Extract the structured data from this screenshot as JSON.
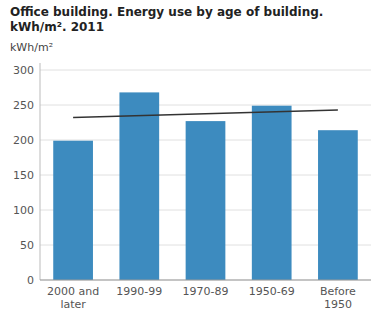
{
  "chart_data": {
    "type": "bar",
    "title": "Office building. Energy use by age of building. kWh/m². 2011",
    "annotation": "kWh/m²",
    "categories": [
      "2000 and\nlater",
      "1990-99",
      "1970-89",
      "1950-69",
      "Before\n1950"
    ],
    "values": [
      199,
      268,
      227,
      249,
      214
    ],
    "color": "#3d8bbf",
    "trend_line": {
      "values": [
        232,
        243
      ],
      "color": "#333333"
    },
    "ylim": [
      0,
      310
    ],
    "yticks": [
      0,
      50,
      100,
      150,
      200,
      250,
      300
    ],
    "grid": true
  }
}
